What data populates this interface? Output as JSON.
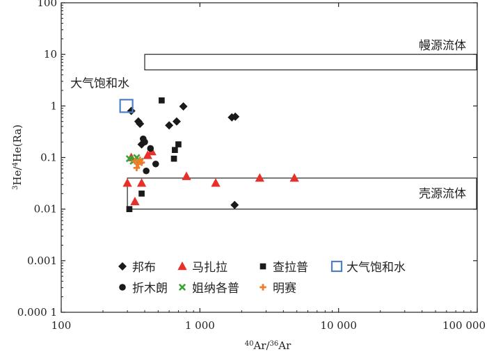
{
  "chart_data": {
    "type": "scatter",
    "x_scale": "log",
    "y_scale": "log",
    "xlim": [
      100,
      100000
    ],
    "ylim": [
      0.0001,
      100
    ],
    "x_ticks": [
      {
        "value": 100,
        "label": "100"
      },
      {
        "value": 1000,
        "label": "1 000"
      },
      {
        "value": 10000,
        "label": "10 000"
      },
      {
        "value": 100000,
        "label": "100 000"
      }
    ],
    "y_ticks": [
      {
        "value": 100,
        "label": "100"
      },
      {
        "value": 10,
        "label": "10"
      },
      {
        "value": 1,
        "label": "1"
      },
      {
        "value": 0.1,
        "label": "0.1"
      },
      {
        "value": 0.01,
        "label": "0.01"
      },
      {
        "value": 0.001,
        "label": "0.001"
      },
      {
        "value": 0.0001,
        "label": "0.000 1"
      }
    ],
    "xlabel": {
      "sup1": "40",
      "base1": "Ar/",
      "sup2": "36",
      "base2": "Ar"
    },
    "ylabel": {
      "sup1": "3",
      "base1": "He/",
      "sup2": "4",
      "base2": "He(Ra)"
    },
    "regions": [
      {
        "label": "幔源流体",
        "x_range": [
          400,
          100000
        ],
        "y_range": [
          5,
          10
        ]
      },
      {
        "label": "壳源流体",
        "x_range": [
          300,
          100000
        ],
        "y_range": [
          0.01,
          0.04
        ]
      }
    ],
    "annotations": [
      {
        "text": "大气饱和水",
        "x": 190,
        "y": 2.3
      }
    ],
    "series": [
      {
        "name": "邦布",
        "marker": "diamond",
        "color": "#1a1a1a",
        "points": [
          [
            320,
            0.8
          ],
          [
            360,
            0.5
          ],
          [
            370,
            0.45
          ],
          [
            380,
            0.18
          ],
          [
            600,
            0.42
          ],
          [
            680,
            0.5
          ],
          [
            760,
            0.98
          ],
          [
            1700,
            0.6
          ],
          [
            1800,
            0.62
          ],
          [
            1780,
            0.012
          ]
        ]
      },
      {
        "name": "马扎拉",
        "marker": "triangle",
        "color": "#e8302a",
        "points": [
          [
            300,
            0.032
          ],
          [
            320,
            0.1
          ],
          [
            340,
            0.014
          ],
          [
            380,
            0.032
          ],
          [
            420,
            0.11
          ],
          [
            450,
            0.13
          ],
          [
            800,
            0.043
          ],
          [
            1300,
            0.032
          ],
          [
            2700,
            0.04
          ],
          [
            4800,
            0.04
          ]
        ]
      },
      {
        "name": "查拉普",
        "marker": "square",
        "color": "#1a1a1a",
        "points": [
          [
            310,
            0.01
          ],
          [
            380,
            0.02
          ],
          [
            530,
            1.28
          ],
          [
            650,
            0.095
          ],
          [
            660,
            0.14
          ],
          [
            700,
            0.18
          ]
        ]
      },
      {
        "name": "大气饱和水",
        "marker": "open-square",
        "color": "#4f7ec2",
        "points": [
          [
            295,
            1.0
          ]
        ]
      },
      {
        "name": "折木朗",
        "marker": "circle",
        "color": "#1a1a1a",
        "points": [
          [
            390,
            0.23
          ],
          [
            400,
            0.2
          ],
          [
            410,
            0.055
          ],
          [
            440,
            0.15
          ],
          [
            480,
            0.075
          ]
        ]
      },
      {
        "name": "姐纳各普",
        "marker": "x",
        "color": "#3aa335",
        "points": [
          [
            310,
            0.095
          ],
          [
            330,
            0.085
          ],
          [
            340,
            0.09
          ],
          [
            350,
            0.1
          ],
          [
            370,
            0.085
          ]
        ]
      },
      {
        "name": "明赛",
        "marker": "plus",
        "color": "#f07d2a",
        "points": [
          [
            340,
            0.085
          ],
          [
            350,
            0.063
          ],
          [
            360,
            0.075
          ],
          [
            370,
            0.09
          ],
          [
            380,
            0.08
          ]
        ]
      }
    ],
    "legend": {
      "placement": "bottom-left",
      "rows": [
        [
          "邦布",
          "马扎拉",
          "查拉普",
          "大气饱和水"
        ],
        [
          "折木朗",
          "姐纳各普",
          "明赛"
        ]
      ]
    },
    "grid": false
  }
}
